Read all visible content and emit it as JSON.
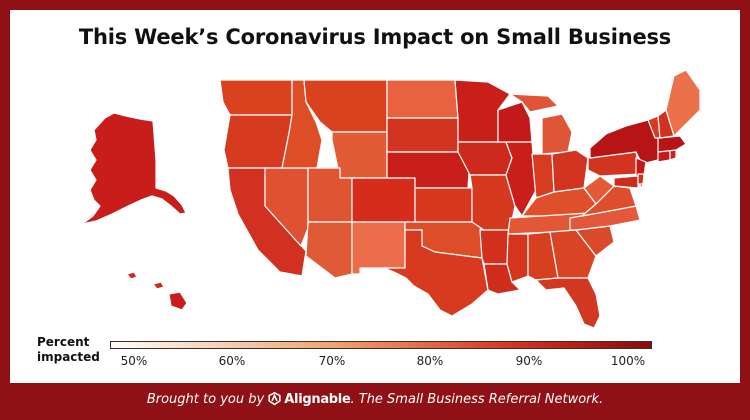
{
  "title": "This Week’s Coronavirus Impact on Small Business",
  "legend": {
    "label_line1": "Percent",
    "label_line2": "impacted",
    "ticks": [
      "50%",
      "60%",
      "70%",
      "80%",
      "90%",
      "100%"
    ],
    "color_start": "#fffdf8",
    "color_mid": "#f2a06c",
    "color_high": "#d9301f",
    "color_end": "#8b0a0a"
  },
  "footer": {
    "prefix": "Brought to you by",
    "brand": "Alignable",
    "suffix": ". The Small Business Referral Network."
  },
  "colors": {
    "background": "#8f1116",
    "map_border": "#ffffff"
  }
}
